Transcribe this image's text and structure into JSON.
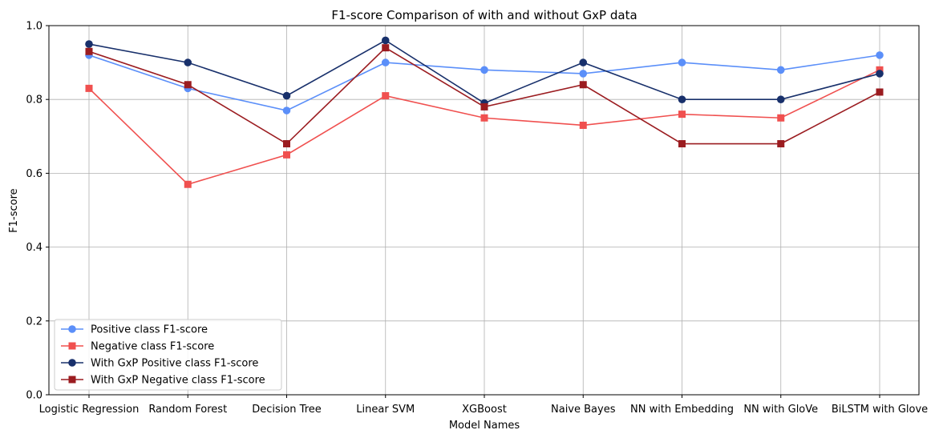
{
  "chart_data": {
    "type": "line",
    "title": "F1-score Comparison of with and without GxP data",
    "xlabel": "Model Names",
    "ylabel": "F1-score",
    "ylim": [
      0,
      1
    ],
    "yticks": [
      "0.0",
      "0.2",
      "0.4",
      "0.6",
      "0.8",
      "1.0"
    ],
    "grid": true,
    "legend_position": "lower-left",
    "categories": [
      "Logistic Regression",
      "Random Forest",
      "Decision Tree",
      "Linear SVM",
      "XGBoost",
      "Naive Bayes",
      "NN with Embedding",
      "NN with GloVe",
      "BiLSTM with Glove"
    ],
    "series": [
      {
        "name": "Positive class F1-score",
        "color": "#5b8ff9",
        "marker": "circle",
        "values": [
          0.92,
          0.83,
          0.77,
          0.9,
          0.88,
          0.87,
          0.9,
          0.88,
          0.92
        ]
      },
      {
        "name": "Negative class F1-score",
        "color": "#f0504f",
        "marker": "square",
        "values": [
          0.83,
          0.57,
          0.65,
          0.81,
          0.75,
          0.73,
          0.76,
          0.75,
          0.88
        ]
      },
      {
        "name": "With GxP Positive class F1-score",
        "color": "#18306b",
        "marker": "circle",
        "values": [
          0.95,
          0.9,
          0.81,
          0.96,
          0.79,
          0.9,
          0.8,
          0.8,
          0.87
        ]
      },
      {
        "name": "With GxP Negative class F1-score",
        "color": "#9b1c20",
        "marker": "square",
        "values": [
          0.93,
          0.84,
          0.68,
          0.94,
          0.78,
          0.84,
          0.68,
          0.68,
          0.82
        ]
      }
    ]
  }
}
